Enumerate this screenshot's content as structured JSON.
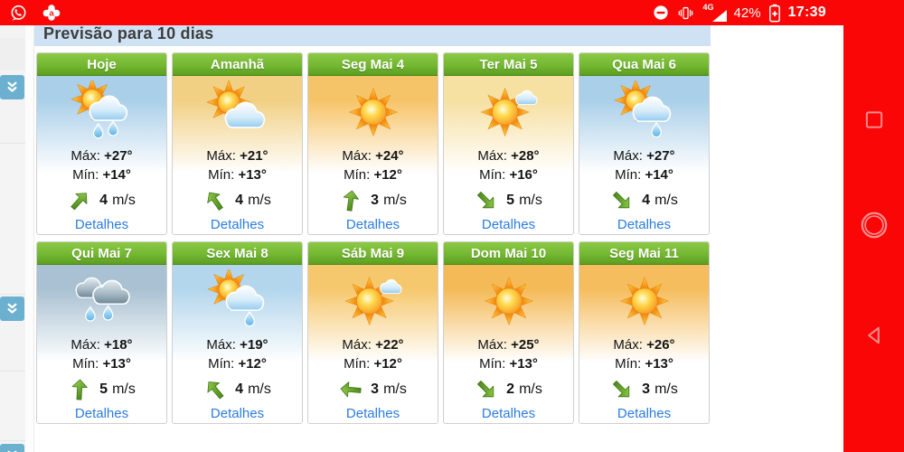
{
  "title": {
    "text": "Previsão para 10 dias"
  },
  "labels": {
    "max": "Máx:",
    "min": "Mín:",
    "wind_unit": "m/s",
    "details": "Detalhes"
  },
  "status_bar": {
    "time": "17:39",
    "battery_percent": "42%",
    "network": "4G",
    "left_icons": [
      {
        "name": "whatsapp-icon"
      },
      {
        "name": "avast-icon"
      }
    ],
    "right_icons": [
      {
        "name": "do-not-disturb-icon"
      },
      {
        "name": "vibrate-icon"
      },
      {
        "name": "signal-4g-icon"
      },
      {
        "name": "battery-saver-icon"
      }
    ]
  },
  "left_panel": {
    "buttons": [
      {
        "name": "expand-chevrons-button"
      },
      {
        "name": "expand-chevrons-button"
      },
      {
        "name": "expand-chevrons-button"
      }
    ]
  },
  "nav_bar": {
    "buttons": [
      {
        "name": "recents-button"
      },
      {
        "name": "home-button"
      },
      {
        "name": "back-button"
      }
    ]
  },
  "cards": [
    {
      "title": "Hoje",
      "icon": "sun-cloud-rain-2",
      "bg_top": "#aacfe9",
      "max": "+27°",
      "min": "+14°",
      "wind": "4",
      "wind_deg": 42
    },
    {
      "title": "Amanhã",
      "icon": "sun-cloud",
      "bg_top": "#f1d084",
      "max": "+21°",
      "min": "+13°",
      "wind": "4",
      "wind_deg": -35
    },
    {
      "title": "Seg Mai 4",
      "icon": "sun",
      "bg_top": "#f6c468",
      "max": "+24°",
      "min": "+12°",
      "wind": "3",
      "wind_deg": 8
    },
    {
      "title": "Ter Mai 5",
      "icon": "mostly-sunny",
      "bg_top": "#f6e0a2",
      "max": "+28°",
      "min": "+16°",
      "wind": "5",
      "wind_deg": 135
    },
    {
      "title": "Qua Mai 6",
      "icon": "sun-cloud-rain-1",
      "bg_top": "#aacfe9",
      "max": "+27°",
      "min": "+14°",
      "wind": "4",
      "wind_deg": 135
    },
    {
      "title": "Qui Mai 7",
      "icon": "rain",
      "bg_top": "#a9c1d2",
      "max": "+18°",
      "min": "+13°",
      "wind": "5",
      "wind_deg": 3
    },
    {
      "title": "Sex Mai 8",
      "icon": "sun-cloud-rain-1",
      "bg_top": "#b3d6ec",
      "max": "+19°",
      "min": "+12°",
      "wind": "4",
      "wind_deg": -40
    },
    {
      "title": "Sáb Mai 9",
      "icon": "mostly-sunny",
      "bg_top": "#f6c86e",
      "max": "+22°",
      "min": "+12°",
      "wind": "3",
      "wind_deg": -85
    },
    {
      "title": "Dom Mai 10",
      "icon": "sun",
      "bg_top": "#f4ba58",
      "max": "+25°",
      "min": "+13°",
      "wind": "2",
      "wind_deg": 135
    },
    {
      "title": "Seg Mai 11",
      "icon": "sun",
      "bg_top": "#f5bd5e",
      "max": "+26°",
      "min": "+13°",
      "wind": "3",
      "wind_deg": 135
    }
  ],
  "colors": {
    "red": "#fb0606",
    "navicon": "#ff8f8f",
    "strip": "#cfe2f4",
    "striptext": "#3d3d3d",
    "green1": "#8cc944",
    "green2": "#74b832",
    "green3": "#5c9e20",
    "greenborder": "#4d8a1a",
    "link": "#2b7ce0",
    "railblue": "#6cb0cf",
    "border": "#cfcfcf",
    "text": "#141414"
  }
}
